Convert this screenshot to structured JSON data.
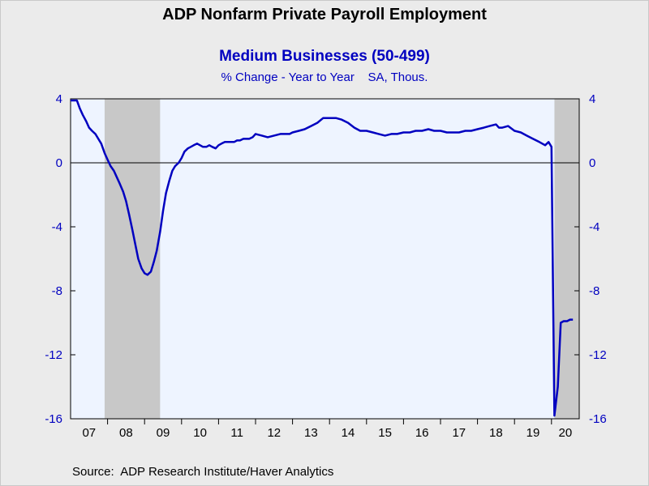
{
  "title": "ADP Nonfarm Private Payroll Employment",
  "subtitle": "Medium Businesses (50-499)",
  "subtitle2": "% Change - Year to Year    SA, Thous.",
  "source": "Source:  ADP Research Institute/Haver Analytics",
  "colors": {
    "series": "#0000c0",
    "plot_bg": "#eef4ff",
    "recession": "#c8c8c8",
    "page_bg": "#ebebeb"
  },
  "chart_data": {
    "type": "line",
    "x_range": [
      2007.0,
      2020.75
    ],
    "ylim": [
      -16,
      4
    ],
    "y_ticks": [
      {
        "value": 4,
        "label": "4"
      },
      {
        "value": 0,
        "label": "0"
      },
      {
        "value": -4,
        "label": "-4"
      },
      {
        "value": -8,
        "label": "-8"
      },
      {
        "value": -12,
        "label": "-12"
      },
      {
        "value": -16,
        "label": "-16"
      }
    ],
    "x_ticks": [
      {
        "year": 2007,
        "label": "07"
      },
      {
        "year": 2008,
        "label": "08"
      },
      {
        "year": 2009,
        "label": "09"
      },
      {
        "year": 2010,
        "label": "10"
      },
      {
        "year": 2011,
        "label": "11"
      },
      {
        "year": 2012,
        "label": "12"
      },
      {
        "year": 2013,
        "label": "13"
      },
      {
        "year": 2014,
        "label": "14"
      },
      {
        "year": 2015,
        "label": "15"
      },
      {
        "year": 2016,
        "label": "16"
      },
      {
        "year": 2017,
        "label": "17"
      },
      {
        "year": 2018,
        "label": "18"
      },
      {
        "year": 2019,
        "label": "19"
      },
      {
        "year": 2020,
        "label": "20"
      }
    ],
    "zero_line": true,
    "recessions": [
      {
        "start": 2007.92,
        "end": 2009.42
      },
      {
        "start": 2020.08,
        "end": 2020.75
      }
    ],
    "series": [
      {
        "x": [
          2007.0,
          2007.17,
          2007.25,
          2007.33,
          2007.42,
          2007.5,
          2007.58,
          2007.67,
          2007.75,
          2007.83,
          2007.92,
          2008.0,
          2008.08,
          2008.17,
          2008.25,
          2008.33,
          2008.42,
          2008.5,
          2008.58,
          2008.67,
          2008.75,
          2008.83,
          2008.92,
          2009.0,
          2009.08,
          2009.17,
          2009.25,
          2009.33,
          2009.42,
          2009.5,
          2009.58,
          2009.67,
          2009.75,
          2009.83,
          2009.92,
          2010.0,
          2010.08,
          2010.17,
          2010.25,
          2010.33,
          2010.42,
          2010.5,
          2010.58,
          2010.67,
          2010.75,
          2010.83,
          2010.92,
          2011.0,
          2011.08,
          2011.17,
          2011.25,
          2011.33,
          2011.42,
          2011.5,
          2011.58,
          2011.67,
          2011.75,
          2011.83,
          2011.92,
          2012.0,
          2012.17,
          2012.33,
          2012.5,
          2012.67,
          2012.83,
          2012.92,
          2013.0,
          2013.17,
          2013.33,
          2013.5,
          2013.67,
          2013.83,
          2014.0,
          2014.17,
          2014.33,
          2014.5,
          2014.67,
          2014.83,
          2015.0,
          2015.17,
          2015.33,
          2015.5,
          2015.67,
          2015.83,
          2016.0,
          2016.17,
          2016.33,
          2016.5,
          2016.67,
          2016.83,
          2017.0,
          2017.17,
          2017.33,
          2017.5,
          2017.67,
          2017.83,
          2018.0,
          2018.17,
          2018.33,
          2018.5,
          2018.58,
          2018.67,
          2018.83,
          2019.0,
          2019.17,
          2019.33,
          2019.5,
          2019.67,
          2019.83,
          2019.92,
          2020.0,
          2020.08,
          2020.17,
          2020.25,
          2020.33,
          2020.42,
          2020.5,
          2020.58
        ],
        "values": [
          3.9,
          3.9,
          3.4,
          3.0,
          2.6,
          2.2,
          2.0,
          1.8,
          1.5,
          1.2,
          0.6,
          0.2,
          -0.2,
          -0.5,
          -0.9,
          -1.3,
          -1.8,
          -2.4,
          -3.2,
          -4.2,
          -5.1,
          -6.0,
          -6.6,
          -6.9,
          -7.0,
          -6.8,
          -6.2,
          -5.5,
          -4.3,
          -3.0,
          -1.9,
          -1.1,
          -0.5,
          -0.2,
          0.0,
          0.3,
          0.7,
          0.9,
          1.0,
          1.1,
          1.2,
          1.1,
          1.0,
          1.0,
          1.1,
          1.0,
          0.9,
          1.1,
          1.2,
          1.3,
          1.3,
          1.3,
          1.3,
          1.4,
          1.4,
          1.5,
          1.5,
          1.5,
          1.6,
          1.8,
          1.7,
          1.6,
          1.7,
          1.8,
          1.8,
          1.8,
          1.9,
          2.0,
          2.1,
          2.3,
          2.5,
          2.8,
          2.8,
          2.8,
          2.7,
          2.5,
          2.2,
          2.0,
          2.0,
          1.9,
          1.8,
          1.7,
          1.8,
          1.8,
          1.9,
          1.9,
          2.0,
          2.0,
          2.1,
          2.0,
          2.0,
          1.9,
          1.9,
          1.9,
          2.0,
          2.0,
          2.1,
          2.2,
          2.3,
          2.4,
          2.2,
          2.2,
          2.3,
          2.0,
          1.9,
          1.7,
          1.5,
          1.3,
          1.1,
          1.3,
          1.0,
          -15.8,
          -14.0,
          -10.0,
          -9.9,
          -9.9,
          -9.8,
          -9.8
        ]
      }
    ]
  }
}
